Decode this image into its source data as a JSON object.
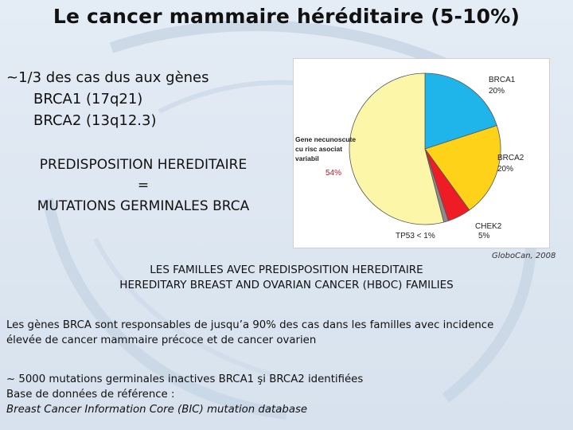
{
  "slide": {
    "title": "Le cancer mammaire héréditaire (5-10%)",
    "intro": {
      "line1": "~1/3 des cas dus aux gènes",
      "line2": "BRCA1 (17q21)",
      "line3": "BRCA2 (13q12.3)"
    },
    "predisposition": {
      "line1": "PREDISPOSITION HEREDITAIRE",
      "line2": "=",
      "line3": "MUTATIONS GERMINALES BRCA"
    },
    "source": "GloboCan, 2008",
    "families": {
      "line1": "LES FAMILLES AVEC PREDISPOSITION HEREDITAIRE",
      "line2": "HEREDITARY BREAST AND OVARIAN CANCER (HBOC) FAMILIES"
    },
    "paragraph1": {
      "line1": "Les gènes BRCA sont responsables de jusqu’a 90% des cas dans les familles avec incidence",
      "line2": "élevée de cancer mammaire précoce et de cancer ovarien"
    },
    "paragraph2": {
      "line1": "~ 5000 mutations germinales inactives BRCA1 şi BRCA2 identifiées",
      "line2_prefix": "Base de données de référence : ",
      "line2_italic": "Breast Cancer Information Core (BIC) mutation database"
    }
  },
  "chart_data": {
    "type": "pie",
    "note_lines": [
      "Gene necunoscute",
      "cu risc asociat",
      "variabil"
    ],
    "slices": [
      {
        "label": "BRCA1",
        "value_label": "20%",
        "value": 20,
        "color": "#1fb5ea"
      },
      {
        "label": "BRCA2",
        "value_label": "20%",
        "value": 20,
        "color": "#ffd21a"
      },
      {
        "label": "CHEK2",
        "value_label": "5%",
        "value": 5,
        "color": "#ee1c24"
      },
      {
        "label": "TP53 < 1%",
        "value_label": "",
        "value": 1,
        "color": "#8c8c8c"
      },
      {
        "label": "",
        "value_label": "54%",
        "value": 54,
        "color": "#fcf7a8"
      }
    ]
  }
}
